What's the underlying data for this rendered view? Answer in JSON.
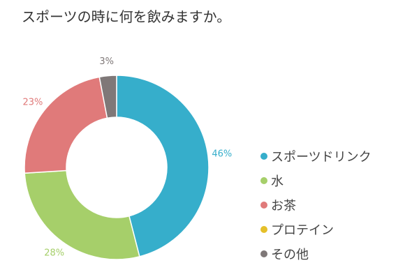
{
  "chart_data": {
    "type": "pie",
    "title": "スポーツの時に何を飲みますか。",
    "categories": [
      "スポーツドリンク",
      "水",
      "お茶",
      "プロテイン",
      "その他"
    ],
    "values": [
      46,
      28,
      23,
      0,
      3
    ],
    "value_labels": [
      "46%",
      "28%",
      "23%",
      "",
      "3%"
    ],
    "colors": [
      "#36AECB",
      "#A6CF6A",
      "#E07A7A",
      "#E5C02A",
      "#7F7878"
    ],
    "donut": true,
    "legend": "right"
  }
}
